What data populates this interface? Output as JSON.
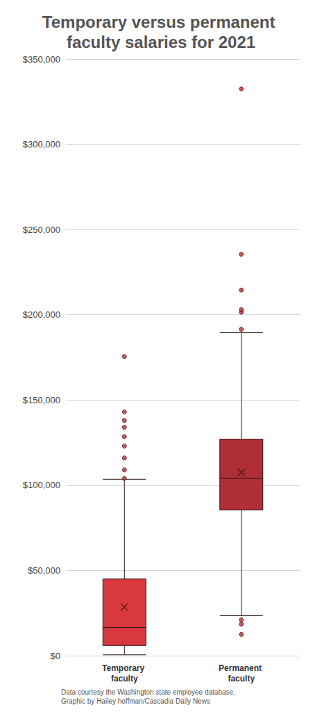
{
  "chart_data": {
    "type": "boxplot",
    "title": "Temporary versus permanent faculty salaries for 2021",
    "categories": [
      "Temporary faculty",
      "Permanent faculty"
    ],
    "whisker_low": [
      500,
      23500
    ],
    "q1": [
      6000,
      85500
    ],
    "median": [
      16500,
      104000
    ],
    "q3": [
      45000,
      127000
    ],
    "whisker_high": [
      103500,
      189500
    ],
    "mean": [
      28500,
      107500
    ],
    "outliers": [
      [
        104000,
        109000,
        116000,
        123000,
        128500,
        134000,
        138000,
        143000,
        175500
      ],
      [
        12500,
        18500,
        21000,
        191500,
        201500,
        203000,
        214500,
        235500,
        332500
      ]
    ],
    "colors": [
      "#d9383f",
      "#b02f36"
    ],
    "marker": "x",
    "ylim": [
      0,
      350000
    ],
    "yticks": [
      {
        "value": 0,
        "label": "$0"
      },
      {
        "value": 50000,
        "label": "$50,000"
      },
      {
        "value": 100000,
        "label": "$100,000"
      },
      {
        "value": 150000,
        "label": "$150,000"
      },
      {
        "value": 200000,
        "label": "$200,000"
      },
      {
        "value": 250000,
        "label": "$250,000"
      },
      {
        "value": 300000,
        "label": "$300,000"
      },
      {
        "value": 350000,
        "label": "$350,000"
      }
    ],
    "grid": true,
    "annotations": [
      "Data courtesy the Washington state employee database.",
      "Graphic by Hailey hoffman/Cascadia Daily News"
    ]
  }
}
